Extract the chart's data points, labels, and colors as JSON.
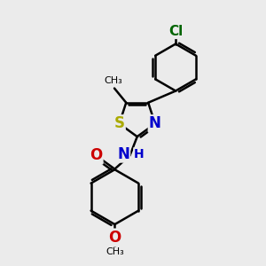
{
  "bg_color": "#ebebeb",
  "bond_color": "#000000",
  "bond_width": 1.8,
  "atoms": {
    "S": {
      "color": "#aaaa00",
      "fontsize": 12,
      "fontweight": "bold"
    },
    "N": {
      "color": "#0000cc",
      "fontsize": 12,
      "fontweight": "bold"
    },
    "O": {
      "color": "#cc0000",
      "fontsize": 12,
      "fontweight": "bold"
    },
    "Cl": {
      "color": "#006400",
      "fontsize": 11,
      "fontweight": "bold"
    },
    "H": {
      "color": "#0000cc",
      "fontsize": 10,
      "fontweight": "bold"
    }
  },
  "methyl_label": "CH₃",
  "methoxy_label": "O",
  "methoxy_me_label": "CH₃"
}
